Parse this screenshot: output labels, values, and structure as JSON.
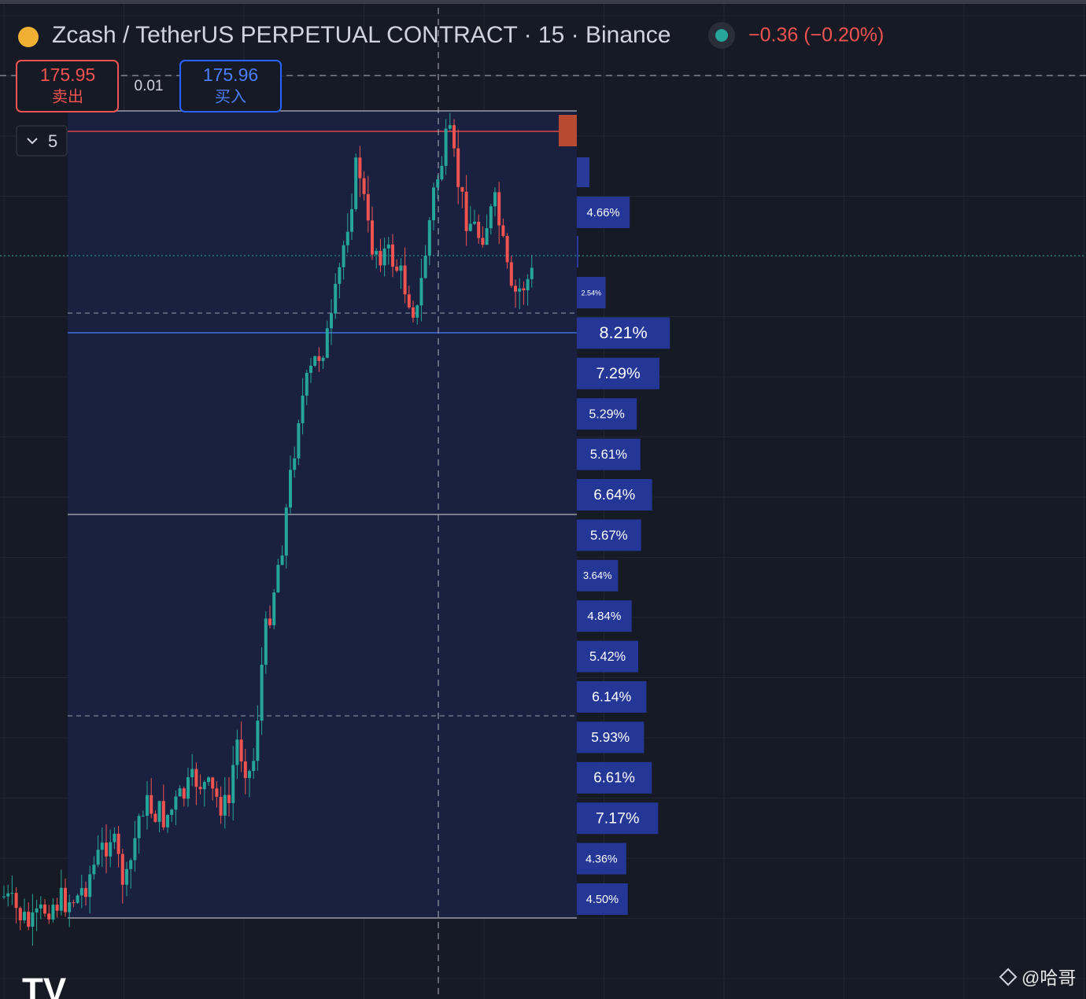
{
  "header": {
    "symbol": "Zcash / TetherUS PERPETUAL CONTRACT · 15 · Binance",
    "change": "−0.36 (−0.20%)"
  },
  "order": {
    "sell_price": "175.95",
    "sell_label": "卖出",
    "spread": "0.01",
    "buy_price": "175.96",
    "buy_label": "买入"
  },
  "indicator_toggle": "5",
  "profile": [
    {
      "value": 4.66,
      "label": "4.66%"
    },
    {
      "value": 2.54,
      "label": "2.54%"
    },
    {
      "value": 8.21,
      "label": "8.21%"
    },
    {
      "value": 7.29,
      "label": "7.29%"
    },
    {
      "value": 5.29,
      "label": "5.29%"
    },
    {
      "value": 5.61,
      "label": "5.61%"
    },
    {
      "value": 6.64,
      "label": "6.64%"
    },
    {
      "value": 5.67,
      "label": "5.67%"
    },
    {
      "value": 3.64,
      "label": "3.64%"
    },
    {
      "value": 4.84,
      "label": "4.84%"
    },
    {
      "value": 5.42,
      "label": "5.42%"
    },
    {
      "value": 6.14,
      "label": "6.14%"
    },
    {
      "value": 5.93,
      "label": "5.93%"
    },
    {
      "value": 6.61,
      "label": "6.61%"
    },
    {
      "value": 7.17,
      "label": "7.17%"
    },
    {
      "value": 4.36,
      "label": "4.36%"
    },
    {
      "value": 4.5,
      "label": "4.50%"
    }
  ],
  "watermark": "@哈哥"
}
